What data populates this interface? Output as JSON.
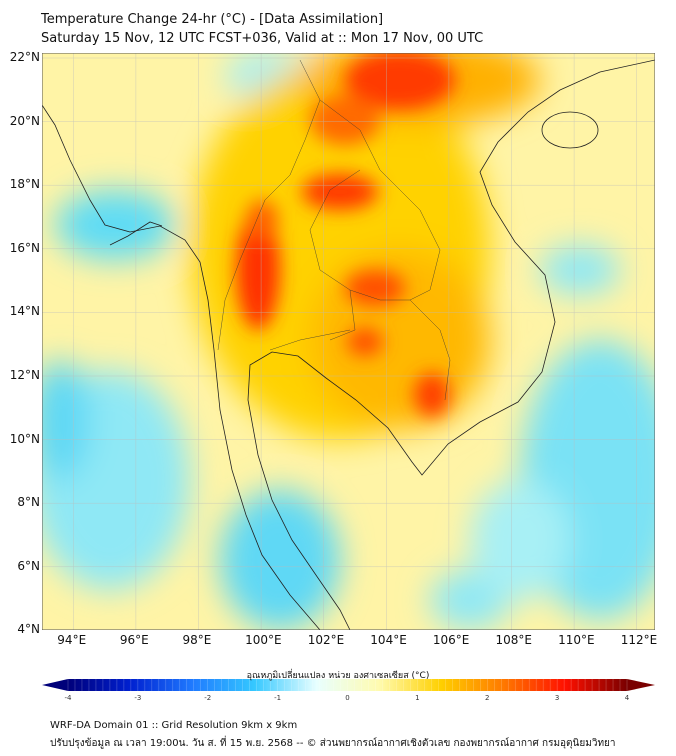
{
  "title": {
    "line1": "Temperature Change 24-hr (°C) - [Data Assimilation]",
    "line2": "Saturday 15 Nov, 12 UTC FCST+036, Valid at :: Mon 17 Nov, 00 UTC"
  },
  "map": {
    "lat_labels": [
      "22°N",
      "20°N",
      "18°N",
      "16°N",
      "14°N",
      "12°N",
      "10°N",
      "8°N",
      "6°N",
      "4°N"
    ],
    "lat_values": [
      22,
      20,
      18,
      16,
      14,
      12,
      10,
      8,
      6,
      4
    ],
    "lon_labels": [
      "94°E",
      "96°E",
      "98°E",
      "100°E",
      "102°E",
      "104°E",
      "106°E",
      "108°E",
      "110°E",
      "112°E"
    ],
    "lon_values": [
      94,
      96,
      98,
      100,
      102,
      104,
      106,
      108,
      110,
      112
    ],
    "extent": {
      "lon": [
        93,
        112.5
      ],
      "lat": [
        4,
        22.15
      ]
    }
  },
  "colorbar": {
    "label": "อุณหภูมิเปลี่ยนแปลง หน่วย องศาเซลเซียส (°C)",
    "ticks": [
      "-4",
      "-3",
      "-2",
      "-1",
      "0",
      "1",
      "2",
      "3",
      "4"
    ],
    "range": [
      -4,
      4
    ],
    "colors": [
      "#00007a",
      "#0020d0",
      "#1f7aff",
      "#35c8ff",
      "#e8ffff",
      "#fffbb0",
      "#ffd000",
      "#ff7a00",
      "#ff1000",
      "#7a0000"
    ]
  },
  "footer": {
    "line1": "WRF-DA Domain 01 :: Grid Resolution 9km x 9km",
    "line2": "ปรับปรุงข้อมูล ณ เวลา 19:00น. วัน ส. ที่ 15 พ.ย. 2568 -- © ส่วนพยากรณ์อากาศเชิงตัวเลข กองพยากรณ์อากาศ กรมอุตุนิยมวิทยา"
  }
}
